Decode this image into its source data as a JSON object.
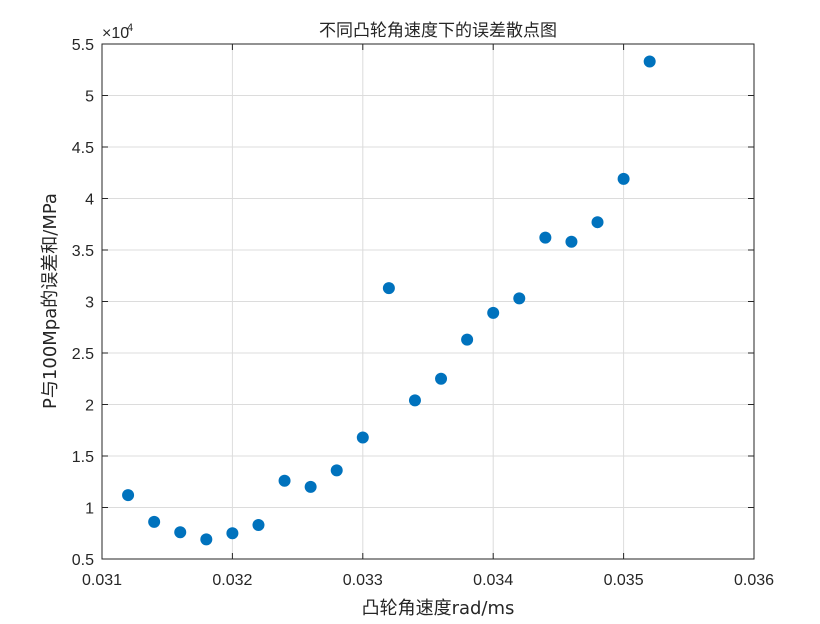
{
  "chart_data": {
    "type": "scatter",
    "title": "不同凸轮角速度下的误差散点图",
    "xlabel": "凸轮角速度rad/ms",
    "ylabel": "P与100Mpa的误差和/MPa",
    "xlim": [
      0.031,
      0.036
    ],
    "ylim": [
      5000,
      55000
    ],
    "y_exponent_label": "×10",
    "y_exponent_power": "4",
    "x_ticks": [
      0.031,
      0.032,
      0.033,
      0.034,
      0.035,
      0.036
    ],
    "x_tick_labels": [
      "0.031",
      "0.032",
      "0.033",
      "0.034",
      "0.035",
      "0.036"
    ],
    "y_ticks": [
      5000,
      10000,
      15000,
      20000,
      25000,
      30000,
      35000,
      40000,
      45000,
      50000,
      55000
    ],
    "y_tick_labels": [
      "0.5",
      "1",
      "1.5",
      "2",
      "2.5",
      "3",
      "3.5",
      "4",
      "4.5",
      "5",
      "5.5"
    ],
    "grid": true,
    "marker_color": "#0072BD",
    "points": [
      {
        "x": 0.0312,
        "y": 11200
      },
      {
        "x": 0.0314,
        "y": 8600
      },
      {
        "x": 0.0316,
        "y": 7600
      },
      {
        "x": 0.0318,
        "y": 6900
      },
      {
        "x": 0.032,
        "y": 7500
      },
      {
        "x": 0.0322,
        "y": 8300
      },
      {
        "x": 0.0324,
        "y": 12600
      },
      {
        "x": 0.0326,
        "y": 12000
      },
      {
        "x": 0.0328,
        "y": 13600
      },
      {
        "x": 0.033,
        "y": 16800
      },
      {
        "x": 0.0332,
        "y": 31300
      },
      {
        "x": 0.0334,
        "y": 20400
      },
      {
        "x": 0.0336,
        "y": 22500
      },
      {
        "x": 0.0338,
        "y": 26300
      },
      {
        "x": 0.034,
        "y": 28900
      },
      {
        "x": 0.0342,
        "y": 30300
      },
      {
        "x": 0.0344,
        "y": 36200
      },
      {
        "x": 0.0346,
        "y": 35800
      },
      {
        "x": 0.0348,
        "y": 37700
      },
      {
        "x": 0.035,
        "y": 41900
      },
      {
        "x": 0.0352,
        "y": 53300
      }
    ]
  }
}
